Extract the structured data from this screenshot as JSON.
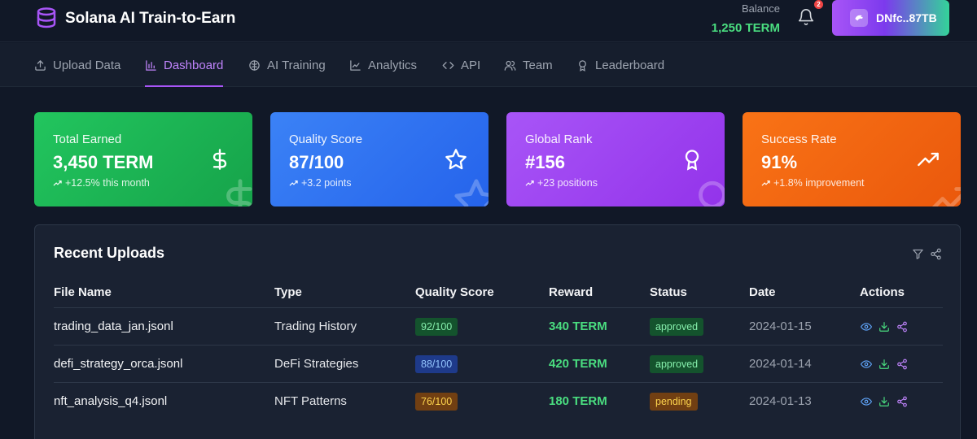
{
  "header": {
    "title": "Solana AI Train-to-Earn",
    "balance_label": "Balance",
    "balance_value": "1,250 TERM",
    "notification_count": "2",
    "wallet_label": "DNfc..87TB"
  },
  "nav": {
    "items": [
      {
        "label": "Upload Data",
        "icon": "upload-icon"
      },
      {
        "label": "Dashboard",
        "icon": "bar-chart-icon",
        "active": true
      },
      {
        "label": "AI Training",
        "icon": "brain-icon"
      },
      {
        "label": "Analytics",
        "icon": "line-chart-icon"
      },
      {
        "label": "API",
        "icon": "code-icon"
      },
      {
        "label": "Team",
        "icon": "users-icon"
      },
      {
        "label": "Leaderboard",
        "icon": "award-icon"
      }
    ]
  },
  "stats": [
    {
      "label": "Total Earned",
      "value": "3,450 TERM",
      "change": "+12.5% this month",
      "icon": "dollar-icon",
      "color_from": "#22c55e",
      "color_to": "#16a34a"
    },
    {
      "label": "Quality Score",
      "value": "87/100",
      "change": "+3.2 points",
      "icon": "star-icon",
      "color_from": "#3b82f6",
      "color_to": "#2563eb"
    },
    {
      "label": "Global Rank",
      "value": "#156",
      "change": "+23 positions",
      "icon": "award-icon",
      "color_from": "#a855f7",
      "color_to": "#9333ea"
    },
    {
      "label": "Success Rate",
      "value": "91%",
      "change": "+1.8% improvement",
      "icon": "trending-up-icon",
      "color_from": "#f97316",
      "color_to": "#ea580c"
    }
  ],
  "uploads": {
    "title": "Recent Uploads",
    "columns": [
      "File Name",
      "Type",
      "Quality Score",
      "Reward",
      "Status",
      "Date",
      "Actions"
    ],
    "rows": [
      {
        "file": "trading_data_jan.jsonl",
        "type": "Trading History",
        "quality": "92/100",
        "quality_tone": "green",
        "reward": "340 TERM",
        "status": "approved",
        "date": "2024-01-15"
      },
      {
        "file": "defi_strategy_orca.jsonl",
        "type": "DeFi Strategies",
        "quality": "88/100",
        "quality_tone": "blue",
        "reward": "420 TERM",
        "status": "approved",
        "date": "2024-01-14"
      },
      {
        "file": "nft_analysis_q4.jsonl",
        "type": "NFT Patterns",
        "quality": "76/100",
        "quality_tone": "yellow",
        "reward": "180 TERM",
        "status": "pending",
        "date": "2024-01-13"
      }
    ]
  },
  "colors": {
    "accent": "#a855f7",
    "success": "#4ade80",
    "page_bg": "#111827"
  }
}
